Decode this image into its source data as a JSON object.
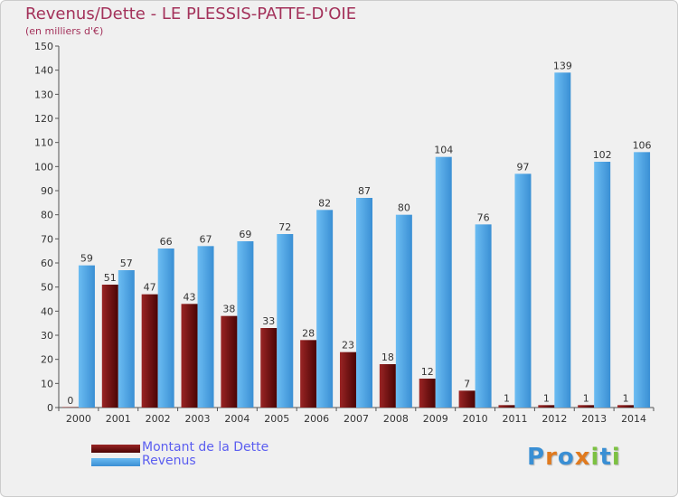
{
  "title": "Revenus/Dette - LE PLESSIS-PATTE-D'OIE",
  "subtitle": "(en milliers d'€)",
  "logo_text": "Proxiti",
  "colors": {
    "title": "#a3315a",
    "debt": "#7a1212",
    "revenue": "#4ba3e3",
    "legend_text": "#5b5ef0"
  },
  "legend": [
    {
      "label": "Montant de la Dette",
      "color": "#7a1212"
    },
    {
      "label": "Revenus",
      "color": "#4ba3e3"
    }
  ],
  "chart_data": {
    "type": "bar",
    "title": "Revenus/Dette - LE PLESSIS-PATTE-D'OIE",
    "ylabel": "(en milliers d'€)",
    "categories": [
      "2000",
      "2001",
      "2002",
      "2003",
      "2004",
      "2005",
      "2006",
      "2007",
      "2008",
      "2009",
      "2010",
      "2011",
      "2012",
      "2013",
      "2014"
    ],
    "series": [
      {
        "name": "Montant de la Dette",
        "values": [
          0,
          51,
          47,
          43,
          38,
          33,
          28,
          23,
          18,
          12,
          7,
          1,
          1,
          1,
          1
        ]
      },
      {
        "name": "Revenus",
        "values": [
          59,
          57,
          66,
          67,
          69,
          72,
          82,
          87,
          80,
          104,
          76,
          97,
          139,
          102,
          106
        ]
      }
    ],
    "ylim": [
      0,
      150
    ],
    "yticks": [
      0,
      10,
      20,
      30,
      40,
      50,
      60,
      70,
      80,
      90,
      100,
      110,
      120,
      130,
      140,
      150
    ],
    "grid": false,
    "legend_position": "bottom-left"
  }
}
